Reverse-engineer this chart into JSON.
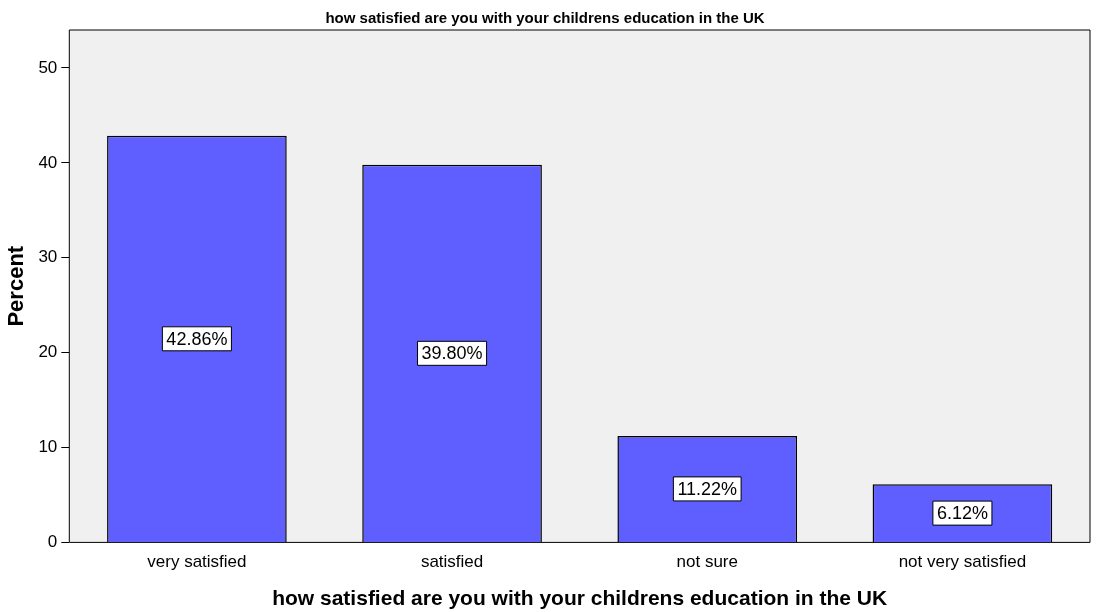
{
  "chart_data": {
    "type": "bar",
    "title": "how satisfied are you with your childrens education in the UK",
    "xlabel": "how satisfied are you with your childrens education in the UK",
    "ylabel": "Percent",
    "categories": [
      "very satisfied",
      "satisfied",
      "not sure",
      "not very satisfied"
    ],
    "values": [
      42.86,
      39.8,
      11.22,
      6.12
    ],
    "value_labels": [
      "42.86%",
      "39.80%",
      "11.22%",
      "6.12%"
    ],
    "color": "#5f5fff",
    "ylim": [
      0,
      54
    ],
    "yticks": [
      0,
      10,
      20,
      30,
      40,
      50
    ],
    "grid": false
  }
}
